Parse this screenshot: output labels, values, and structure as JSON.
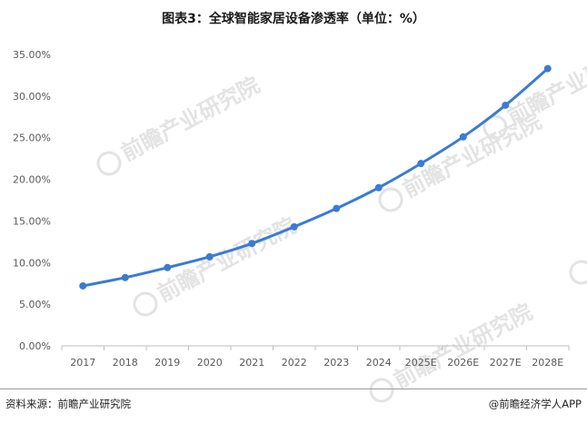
{
  "title": "图表3：全球智能家居设备渗透率（单位：%）",
  "footer": {
    "source": "资料来源：前瞻产业研究院",
    "credit": "@前瞻经济学人APP"
  },
  "watermark": {
    "text": "前瞻产业研究院"
  },
  "colors": {
    "line": "#3a7bd5",
    "grid_axis": "#bfbfbf",
    "tick_text": "#595959",
    "watermark": "#e3e3e3"
  },
  "chart_data": {
    "type": "line",
    "categories": [
      "2017",
      "2018",
      "2019",
      "2020",
      "2021",
      "2022",
      "2023",
      "2024",
      "2025E",
      "2026E",
      "2027E",
      "2028E"
    ],
    "series": [
      {
        "values": [
          7.2,
          8.2,
          9.4,
          10.7,
          12.3,
          14.3,
          16.5,
          19.0,
          21.9,
          25.1,
          28.9,
          33.3
        ]
      }
    ],
    "ylim": [
      0,
      35
    ],
    "yticks": [
      0,
      5,
      10,
      15,
      20,
      25,
      30,
      35
    ],
    "ytick_labels": [
      "0.00%",
      "5.00%",
      "10.00%",
      "15.00%",
      "20.00%",
      "25.00%",
      "30.00%",
      "35.00%"
    ],
    "grid": false,
    "legend": "none",
    "smooth": true
  }
}
